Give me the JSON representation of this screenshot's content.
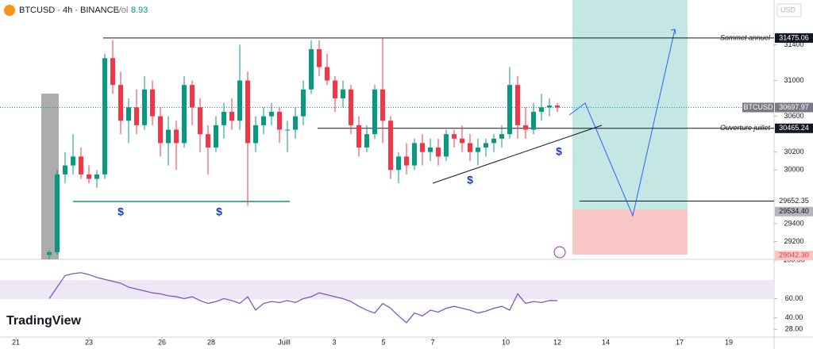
{
  "chart_data": {
    "type": "candlestick",
    "title": "BTCUSD · 4h · BINANCE",
    "volume_label": "Vol",
    "volume": 8.93,
    "currency": "USD",
    "brand": "TradingView",
    "up_color": "#089981",
    "down_color": "#f23645",
    "candles": [
      [
        29050,
        29100,
        29000,
        29080
      ],
      [
        29080,
        30000,
        29050,
        29950
      ],
      [
        29950,
        30200,
        29850,
        30050
      ],
      [
        30050,
        30400,
        29950,
        30150
      ],
      [
        30150,
        30250,
        29900,
        29950
      ],
      [
        29950,
        30050,
        29850,
        29900
      ],
      [
        29900,
        30000,
        29800,
        29950
      ],
      [
        29950,
        31300,
        29900,
        31250
      ],
      [
        31250,
        31450,
        30850,
        30950
      ],
      [
        30950,
        31100,
        30400,
        30550
      ],
      [
        30550,
        30800,
        30300,
        30700
      ],
      [
        30700,
        30900,
        30400,
        30500
      ],
      [
        30500,
        31050,
        30450,
        30900
      ],
      [
        30900,
        31000,
        30500,
        30600
      ],
      [
        30600,
        30700,
        30150,
        30300
      ],
      [
        30300,
        30600,
        30050,
        30450
      ],
      [
        30450,
        30550,
        30000,
        30300
      ],
      [
        30300,
        31050,
        30250,
        30950
      ],
      [
        30950,
        31000,
        30500,
        30700
      ],
      [
        30700,
        30800,
        30200,
        30400
      ],
      [
        30400,
        30500,
        29950,
        30250
      ],
      [
        30250,
        30600,
        30200,
        30500
      ],
      [
        30500,
        30750,
        30350,
        30650
      ],
      [
        30650,
        30800,
        30450,
        30550
      ],
      [
        30550,
        31400,
        30450,
        31000
      ],
      [
        31000,
        31100,
        29600,
        30300
      ],
      [
        30300,
        30600,
        30200,
        30500
      ],
      [
        30500,
        30700,
        30400,
        30600
      ],
      [
        30600,
        30750,
        30500,
        30650
      ],
      [
        30650,
        30700,
        30300,
        30450
      ],
      [
        30450,
        30550,
        30200,
        30450
      ],
      [
        30450,
        30700,
        30350,
        30600
      ],
      [
        30600,
        31000,
        30500,
        30900
      ],
      [
        30900,
        31450,
        30850,
        31350
      ],
      [
        31350,
        31450,
        31050,
        31150
      ],
      [
        31150,
        31300,
        30950,
        31000
      ],
      [
        31000,
        31050,
        30650,
        30800
      ],
      [
        30800,
        31000,
        30700,
        30900
      ],
      [
        30900,
        30950,
        30400,
        30500
      ],
      [
        30500,
        30600,
        30150,
        30250
      ],
      [
        30250,
        30500,
        30200,
        30400
      ],
      [
        30400,
        30950,
        30350,
        30900
      ],
      [
        30900,
        31475,
        30300,
        30550
      ],
      [
        30550,
        30600,
        29900,
        30000
      ],
      [
        30000,
        30200,
        29850,
        30150
      ],
      [
        30150,
        30300,
        29950,
        30050
      ],
      [
        30050,
        30350,
        30000,
        30300
      ],
      [
        30300,
        30400,
        30050,
        30200
      ],
      [
        30200,
        30350,
        30100,
        30250
      ],
      [
        30250,
        30350,
        30050,
        30150
      ],
      [
        30150,
        30450,
        30100,
        30400
      ],
      [
        30400,
        30450,
        30250,
        30350
      ],
      [
        30350,
        30500,
        30200,
        30300
      ],
      [
        30300,
        30400,
        30100,
        30200
      ],
      [
        30200,
        30350,
        30050,
        30250
      ],
      [
        30250,
        30350,
        30150,
        30300
      ],
      [
        30300,
        30400,
        30200,
        30350
      ],
      [
        30350,
        30500,
        30250,
        30400
      ],
      [
        30400,
        31150,
        30350,
        30950
      ],
      [
        30950,
        31050,
        30350,
        30500
      ],
      [
        30500,
        30700,
        30350,
        30450
      ],
      [
        30450,
        30750,
        30400,
        30650
      ],
      [
        30650,
        30850,
        30550,
        30700
      ],
      [
        30700,
        30800,
        30600,
        30720
      ],
      [
        30720,
        30750,
        30650,
        30698
      ]
    ],
    "ylim": [
      29000,
      31900
    ],
    "yticks": [
      31400,
      31000,
      30600,
      30200,
      30000,
      29400,
      29200
    ],
    "xlim": [
      -6.2,
      91.3
    ],
    "xticks": [
      {
        "value": -4.2,
        "label": "21"
      },
      {
        "value": 5,
        "label": "23"
      },
      {
        "value": 14.2,
        "label": "26"
      },
      {
        "value": 20.4,
        "label": "28"
      },
      {
        "value": 29.6,
        "label": "Juill"
      },
      {
        "value": 35.9,
        "label": "3"
      },
      {
        "value": 42.1,
        "label": "5"
      },
      {
        "value": 48.3,
        "label": "7"
      },
      {
        "value": 57.5,
        "label": "10"
      },
      {
        "value": 64,
        "label": "12"
      },
      {
        "value": 70.1,
        "label": "14"
      },
      {
        "value": 79.4,
        "label": "17"
      },
      {
        "value": 85.6,
        "label": "19"
      }
    ],
    "levels": [
      {
        "name": "Sommet annuel",
        "value": 31475.06
      },
      {
        "name": "Ouverture juillet",
        "value": 30465.24
      }
    ],
    "last_price": {
      "name": "BTCUSD",
      "value": 30697.97
    },
    "target_level": 29652.35,
    "position": {
      "entry": {
        "value": 29534.4,
        "label": "29534.40"
      },
      "stop": {
        "value": 29042.3,
        "label": "29042.30"
      }
    },
    "annotations": [
      "$",
      "$",
      "$",
      "$"
    ],
    "rsi": {
      "color": "#7e57c2",
      "values": [
        60,
        72,
        84,
        86,
        87,
        85,
        82,
        80,
        78,
        76,
        72,
        70,
        68,
        66,
        65,
        63,
        62,
        60,
        62,
        58,
        55,
        57,
        60,
        58,
        55,
        62,
        48,
        55,
        57,
        56,
        58,
        56,
        60,
        62,
        66,
        64,
        62,
        60,
        57,
        52,
        48,
        45,
        55,
        50,
        42,
        35,
        45,
        42,
        48,
        46,
        50,
        52,
        50,
        48,
        45,
        47,
        50,
        52,
        48,
        65,
        55,
        57,
        56,
        58,
        58
      ],
      "ylim": [
        20,
        100
      ],
      "yticks": [
        {
          "value": 100,
          "label": "100.00"
        },
        {
          "value": 60,
          "label": "60.00"
        },
        {
          "value": 40,
          "label": "40.00"
        },
        {
          "value": 28,
          "label": "28.00"
        }
      ]
    }
  }
}
